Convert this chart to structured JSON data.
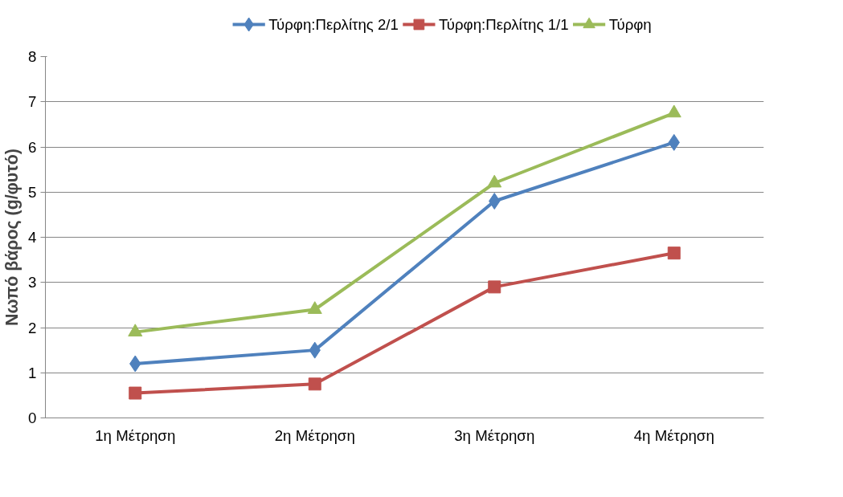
{
  "chart_data": {
    "type": "line",
    "ylabel": "Νωπό βάρος (g/φυτό)",
    "categories": [
      "1η Μέτρηση",
      "2η Μέτρηση",
      "3η Μέτρηση",
      "4η Μέτρηση"
    ],
    "series": [
      {
        "name": "Τύρφη:Περλίτης 2/1",
        "color": "#4f81bd",
        "marker": "diamond",
        "values": [
          1.2,
          1.5,
          4.8,
          6.1
        ]
      },
      {
        "name": "Τύρφη:Περλίτης 1/1",
        "color": "#c0504d",
        "marker": "square",
        "values": [
          0.55,
          0.75,
          2.9,
          3.65
        ]
      },
      {
        "name": "Τύρφη",
        "color": "#9bbb59",
        "marker": "triangle",
        "values": [
          1.9,
          2.4,
          5.2,
          6.75
        ]
      }
    ],
    "ylim": [
      0,
      8
    ],
    "yticks": [
      0,
      1,
      2,
      3,
      4,
      5,
      6,
      7,
      8
    ],
    "grid": "y",
    "legend": "top",
    "line_style": "solid"
  }
}
